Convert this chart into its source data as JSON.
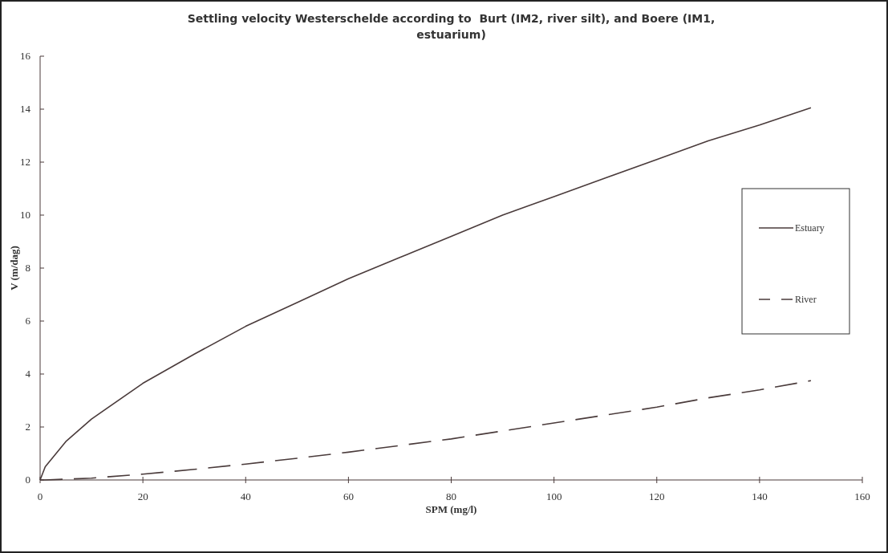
{
  "chart_data": {
    "type": "line",
    "title": "Settling velocity Westerschelde according to  Burt (IM2, river silt), and Boere (IM1, estuarium)",
    "xlabel": "SPM (mg/l)",
    "ylabel": "V (m/dag)",
    "x": [
      0,
      1,
      5,
      10,
      20,
      30,
      40,
      50,
      60,
      70,
      80,
      90,
      100,
      110,
      120,
      130,
      140,
      150
    ],
    "series": [
      {
        "name": "Estuary",
        "color": "#4a3b3b",
        "line_style": "solid",
        "values": [
          0,
          0.5,
          1.45,
          2.3,
          3.65,
          4.75,
          5.8,
          6.7,
          7.6,
          8.4,
          9.2,
          10.0,
          10.7,
          11.4,
          12.1,
          12.8,
          13.4,
          14.05
        ]
      },
      {
        "name": "River",
        "color": "#4a3b3b",
        "line_style": "dashed",
        "values": [
          0,
          0,
          0.03,
          0.07,
          0.22,
          0.4,
          0.6,
          0.82,
          1.05,
          1.3,
          1.55,
          1.85,
          2.15,
          2.45,
          2.75,
          3.1,
          3.4,
          3.75
        ]
      }
    ],
    "xlim": [
      0,
      160
    ],
    "xticks": [
      0,
      20,
      40,
      60,
      80,
      100,
      120,
      140,
      160
    ],
    "ylim": [
      0,
      16
    ],
    "yticks": [
      0,
      2,
      4,
      6,
      8,
      10,
      12,
      14,
      16
    ],
    "grid": false,
    "legend": "right",
    "marker": "none"
  }
}
